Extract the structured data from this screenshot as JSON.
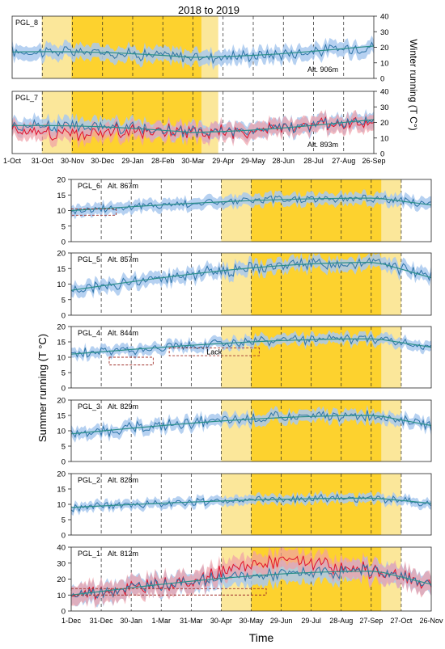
{
  "figure": {
    "title": "2018 to 2019",
    "winter_ylabel": "Winter running (T C°)",
    "summer_ylabel": "Summer running (T °C)",
    "xlabel": "Time"
  },
  "colors": {
    "light_yellow": "#fbe79a",
    "dark_yellow": "#fdd22e",
    "blue_band": "#a9c9ee",
    "red_band": "#f0a0a8",
    "blue_line": "#2c74a6",
    "red_line": "#e0102a",
    "trend": "#2b8f8a",
    "box": "#a0302a"
  },
  "chart_data": [
    {
      "type": "line",
      "id": "winter",
      "title": "2018 to 2019",
      "ylabel": "Winter running (T C°)",
      "ylim": [
        0,
        40
      ],
      "yticks": [
        0,
        10,
        20,
        30,
        40
      ],
      "x_ticks": [
        "1-Oct",
        "31-Oct",
        "30-Nov",
        "30-Dec",
        "29-Jan",
        "28-Feb",
        "30-Mar",
        "29-Apr",
        "29-May",
        "28-Jun",
        "28-Jul",
        "27-Aug",
        "26-Sep"
      ],
      "x_range_days": [
        0,
        365
      ],
      "shading": {
        "light": [
          30,
          208
        ],
        "dark": [
          60,
          191
        ]
      },
      "panels": [
        {
          "label": "PGL_8",
          "alt": "Alt. 906m",
          "series": "blue",
          "mean_start": 20,
          "trend": [
            17,
            14,
            20
          ],
          "noise": 3,
          "band": 4.5
        },
        {
          "label": "PGL_7",
          "alt": "Alt. 893m",
          "series": "red+blue",
          "mean_start": 20,
          "trend": [
            18,
            14,
            21
          ],
          "noise": 3,
          "band": 5,
          "red_dip": 9
        }
      ]
    },
    {
      "type": "line",
      "id": "summer",
      "ylabel": "Summer running (T °C)",
      "xlabel": "Time",
      "x_ticks": [
        "1-Dec",
        "31-Dec",
        "30-Jan",
        "1-Mar",
        "31-Mar",
        "30-Apr",
        "30-May",
        "29-Jun",
        "29-Jul",
        "28-Aug",
        "27-Sep",
        "27-Oct",
        "26-Nov"
      ],
      "x_range_days": [
        0,
        360
      ],
      "shading": {
        "light": [
          150,
          330
        ],
        "dark": [
          180,
          310
        ]
      },
      "panels": [
        {
          "label": "PGL_6",
          "alt": "Alt. 867m",
          "ylim": [
            0,
            20
          ],
          "yticks": [
            0,
            5,
            10,
            15,
            20
          ],
          "series": "blue",
          "mean_start": 10,
          "peak": 14,
          "noise": 1.2,
          "band": 1.8,
          "lack": [
            0,
            45,
            8.5,
            10.5
          ]
        },
        {
          "label": "PGL_5",
          "alt": "Alt. 857m",
          "ylim": [
            0,
            20
          ],
          "yticks": [
            0,
            5,
            10,
            15,
            20
          ],
          "series": "blue",
          "mean_start": 8,
          "peak": 17,
          "noise": 1.5,
          "band": 2
        },
        {
          "label": "PGL_4",
          "alt": "Alt. 844m",
          "ylim": [
            0,
            20
          ],
          "yticks": [
            0,
            5,
            10,
            15,
            20
          ],
          "series": "blue",
          "mean_start": 11,
          "peak": 16,
          "noise": 1.2,
          "band": 1.6,
          "lack": [
            38,
            82,
            7.5,
            10
          ],
          "lack2": [
            98,
            188,
            10.5,
            13
          ],
          "lack_text": "Lack"
        },
        {
          "label": "PGL_3",
          "alt": "Alt. 829m",
          "ylim": [
            0,
            20
          ],
          "yticks": [
            0,
            5,
            10,
            15,
            20
          ],
          "series": "blue",
          "mean_start": 9,
          "peak": 15,
          "noise": 1.4,
          "band": 1.8
        },
        {
          "label": "PGL_2",
          "alt": "Alt. 828m",
          "ylim": [
            0,
            20
          ],
          "yticks": [
            0,
            5,
            10,
            15,
            20
          ],
          "series": "blue",
          "mean_start": 9,
          "peak": 12,
          "noise": 1,
          "band": 1.4
        },
        {
          "label": "PGL_1",
          "alt": "Alt. 812m",
          "ylim": [
            0,
            40
          ],
          "yticks": [
            0,
            10,
            20,
            30,
            40
          ],
          "series": "red+blue",
          "mean_start": 10,
          "peak": 25,
          "noise": 3,
          "band": 6,
          "lack": [
            0,
            195,
            10,
            14
          ]
        }
      ]
    }
  ]
}
